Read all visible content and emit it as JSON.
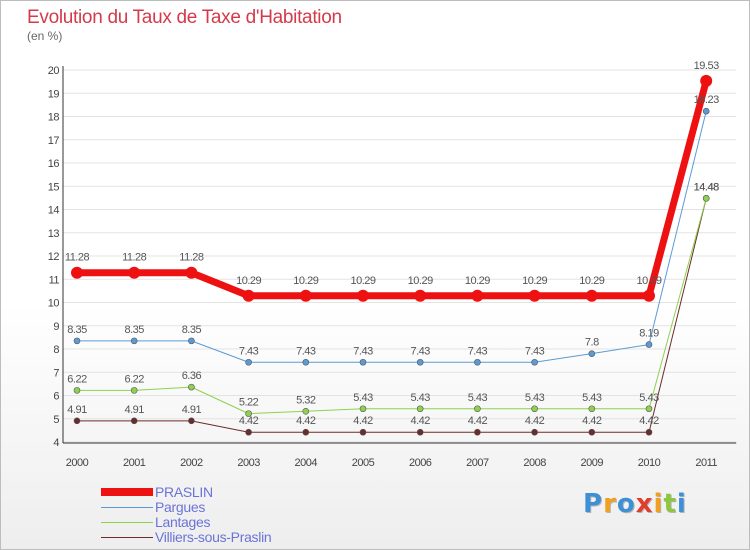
{
  "header": {
    "title": "Evolution du Taux de Taxe d'Habitation",
    "subtitle": "(en %)"
  },
  "chart_data": {
    "type": "line",
    "title": "Evolution du Taux de Taxe d'Habitation",
    "ylabel": "(en %)",
    "xlabel": "",
    "ylim": [
      4,
      20
    ],
    "yticks": [
      "4",
      "5",
      "6",
      "7",
      "8",
      "9",
      "10",
      "11",
      "12",
      "13",
      "14",
      "15",
      "16",
      "17",
      "18",
      "19",
      "20"
    ],
    "categories": [
      "2000",
      "2001",
      "2002",
      "2003",
      "2004",
      "2005",
      "2006",
      "2007",
      "2008",
      "2009",
      "2010",
      "2011"
    ],
    "series": [
      {
        "name": "PRASLIN",
        "color": "#ee1111",
        "values": [
          11.28,
          11.28,
          11.28,
          10.29,
          10.29,
          10.29,
          10.29,
          10.29,
          10.29,
          10.29,
          10.29,
          19.53
        ],
        "labels": [
          "11.28",
          "11.28",
          "11.28",
          "10.29",
          "10.29",
          "10.29",
          "10.29",
          "10.29",
          "10.29",
          "10.29",
          "10.29",
          "19.53"
        ]
      },
      {
        "name": "Pargues",
        "color": "#5b9bd5",
        "values": [
          8.35,
          8.35,
          8.35,
          7.43,
          7.43,
          7.43,
          7.43,
          7.43,
          7.43,
          7.8,
          8.19,
          18.23
        ],
        "labels": [
          "8.35",
          "8.35",
          "8.35",
          "7.43",
          "7.43",
          "7.43",
          "7.43",
          "7.43",
          "7.43",
          "7.8",
          "8.19",
          "18.23"
        ]
      },
      {
        "name": "Lantages",
        "color": "#8fd14f",
        "values": [
          6.22,
          6.22,
          6.36,
          5.22,
          5.32,
          5.43,
          5.43,
          5.43,
          5.43,
          5.43,
          5.43,
          14.48
        ],
        "labels": [
          "6.22",
          "6.22",
          "6.36",
          "5.22",
          "5.32",
          "5.43",
          "5.43",
          "5.43",
          "5.43",
          "5.43",
          "5.43",
          "14.48"
        ]
      },
      {
        "name": "Villiers-sous-Praslin",
        "color": "#6b2c2c",
        "values": [
          4.91,
          4.91,
          4.91,
          4.42,
          4.42,
          4.42,
          4.42,
          4.42,
          4.42,
          4.42,
          4.42,
          14.48
        ],
        "labels": [
          "4.91",
          "4.91",
          "4.91",
          "4.42",
          "4.42",
          "4.42",
          "4.42",
          "4.42",
          "4.42",
          "4.42",
          "4.42",
          "14.48"
        ]
      }
    ]
  },
  "legend": {
    "items": [
      {
        "label": "PRASLIN"
      },
      {
        "label": "Pargues"
      },
      {
        "label": "Lantages"
      },
      {
        "label": "Villiers-sous-Praslin"
      }
    ]
  },
  "logo": {
    "text": "Proxiti",
    "letters": [
      "P",
      "r",
      "o",
      "x",
      "i",
      "t",
      "i"
    ],
    "colors": [
      "#3d8fd6",
      "#f0a020",
      "#3d8fd6",
      "#e23c2c",
      "#f0a020",
      "#8dc63f",
      "#3d8fd6"
    ]
  }
}
